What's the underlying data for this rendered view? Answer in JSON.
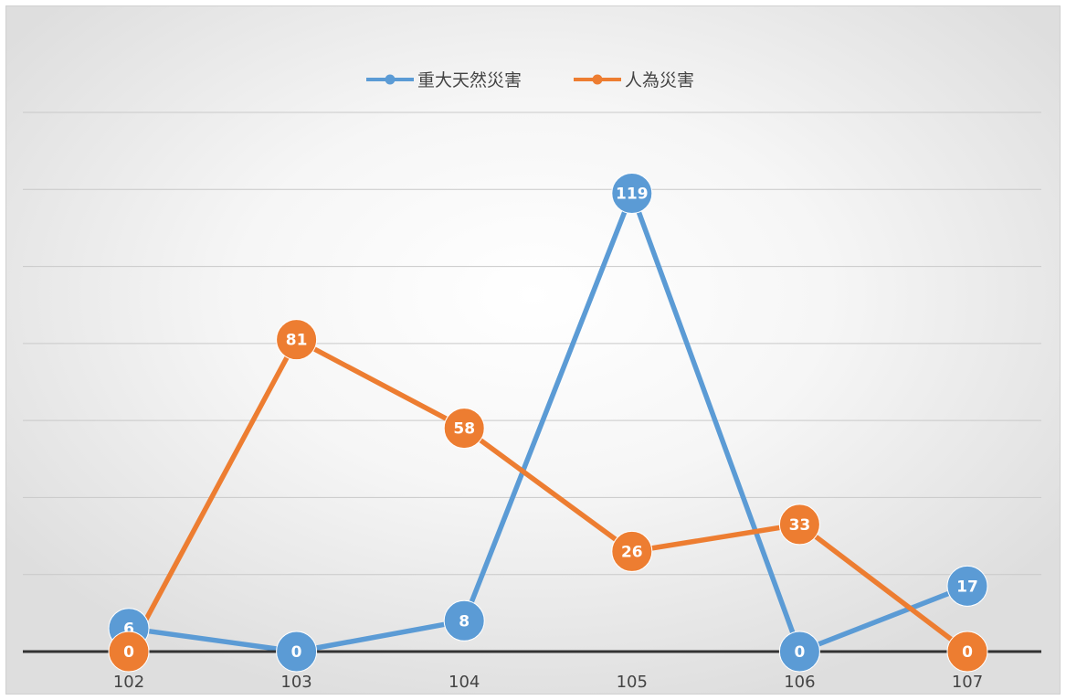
{
  "chart_data": {
    "type": "line",
    "title": "",
    "xlabel": "",
    "ylabel": "",
    "categories": [
      "102",
      "103",
      "104",
      "105",
      "106",
      "107"
    ],
    "ylim": [
      0,
      140
    ],
    "grid": true,
    "legend_position": "top",
    "series": [
      {
        "name": "重大天然災害",
        "color": "#5b9bd5",
        "values": [
          6,
          0,
          8,
          119,
          0,
          17
        ]
      },
      {
        "name": "人為災害",
        "color": "#ed7d31",
        "values": [
          0,
          81,
          58,
          26,
          33,
          0
        ]
      }
    ]
  }
}
